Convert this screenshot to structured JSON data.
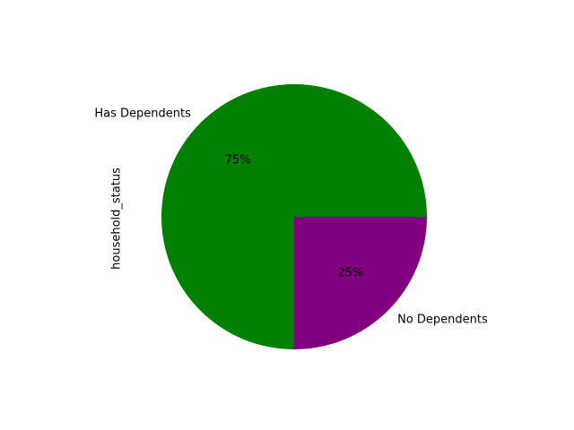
{
  "chart_data": {
    "type": "pie",
    "title": "",
    "ylabel": "household_status",
    "slices": [
      {
        "label": "Has Dependents",
        "value": 75,
        "pct_label": "75%",
        "color": "#008000"
      },
      {
        "label": "No Dependents",
        "value": 25,
        "pct_label": "25%",
        "color": "#800080"
      }
    ]
  }
}
